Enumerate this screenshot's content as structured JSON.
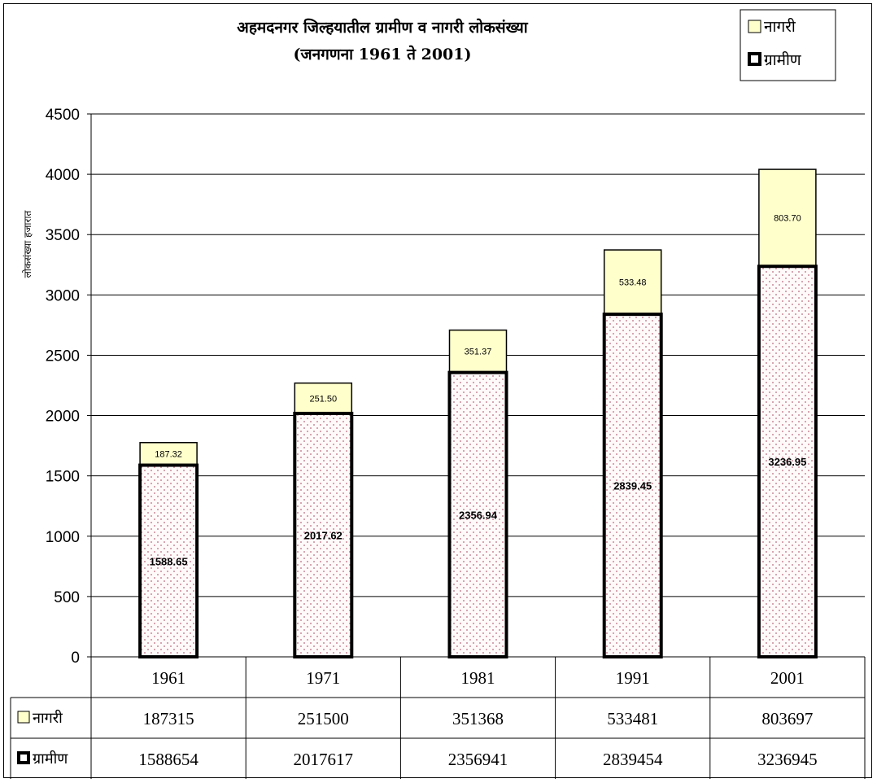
{
  "chart_data": {
    "type": "bar",
    "stacked": true,
    "title_lines": [
      "अहमदनगर जिल्हयातील ग्रामीण व नागरी लोकसंख्या",
      "(जनगणना 1961 ते 2001)"
    ],
    "ylabel": "लोकसंख्या हजारात",
    "ylim": [
      0,
      4500
    ],
    "yticks": [
      0,
      500,
      1000,
      1500,
      2000,
      2500,
      3000,
      3500,
      4000,
      4500
    ],
    "categories": [
      "1961",
      "1971",
      "1981",
      "1991",
      "2001"
    ],
    "grid": true,
    "legend_position": "top-right",
    "series": [
      {
        "name": "ग्रामीण",
        "values": [
          1588.65,
          2017.62,
          2356.94,
          2839.45,
          3236.95
        ],
        "labels": [
          "1588.65",
          "2017.62",
          "2356.94",
          "2839.45",
          "3236.95"
        ],
        "table_values": [
          "1588654",
          "2017617",
          "2356941",
          "2839454",
          "3236945"
        ],
        "fill": "#fffafa",
        "dot_color": "#c88a9a"
      },
      {
        "name": "नागरी",
        "values": [
          187.32,
          251.5,
          351.37,
          533.48,
          803.7
        ],
        "labels": [
          "187.32",
          "251.50",
          "351.37",
          "533.48",
          "803.70"
        ],
        "table_values": [
          "187315",
          "251500",
          "351368",
          "533481",
          "803697"
        ],
        "fill": "#ffffcc"
      }
    ]
  }
}
